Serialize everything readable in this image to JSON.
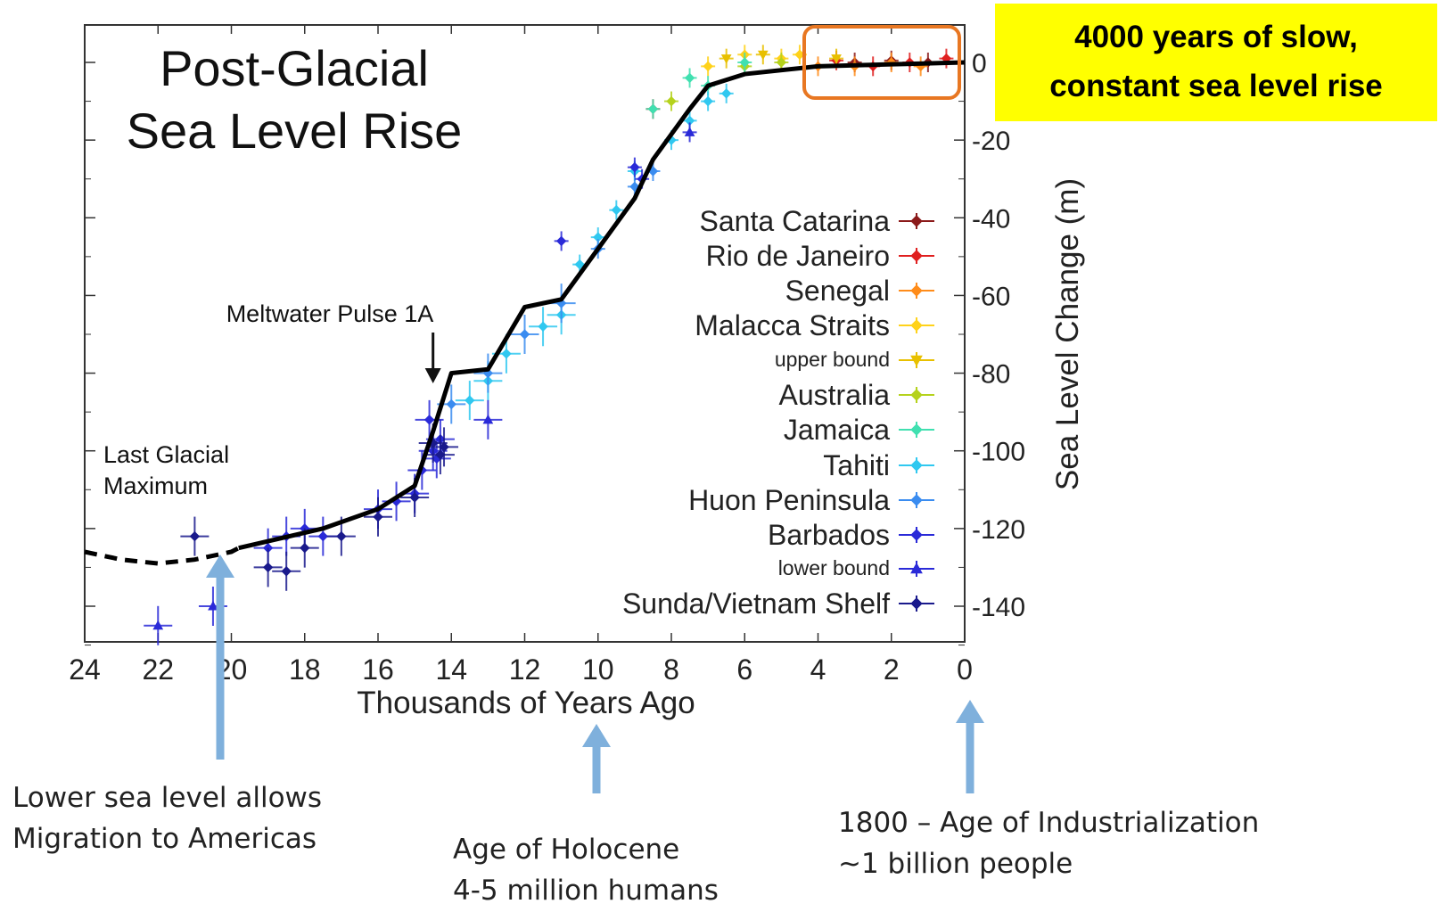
{
  "chart_data": {
    "type": "scatter",
    "title": "Post-Glacial Sea Level Rise",
    "title_lines": [
      "Post-Glacial",
      "Sea Level Rise"
    ],
    "xlabel": "Thousands of Years Ago",
    "ylabel": "Sea Level Change (m)",
    "xlim": [
      24,
      0
    ],
    "ylim": [
      -150,
      10
    ],
    "x_ticks": [
      24,
      22,
      20,
      18,
      16,
      14,
      12,
      10,
      8,
      6,
      4,
      2,
      0
    ],
    "y_ticks": [
      0,
      -20,
      -40,
      -60,
      -80,
      -100,
      -120,
      -140
    ],
    "y_axis_side": "right",
    "fit_curve": {
      "color": "#000000",
      "solid": [
        [
          19.8,
          -125
        ],
        [
          17.5,
          -120
        ],
        [
          16,
          -115
        ],
        [
          15,
          -109
        ],
        [
          14.5,
          -95
        ],
        [
          14,
          -80
        ],
        [
          13,
          -79
        ],
        [
          12,
          -63
        ],
        [
          11,
          -61
        ],
        [
          9,
          -35
        ],
        [
          8.5,
          -25
        ],
        [
          7.5,
          -12
        ],
        [
          7,
          -6
        ],
        [
          6,
          -3
        ],
        [
          4,
          -1
        ],
        [
          2,
          -0.5
        ],
        [
          0,
          0
        ]
      ],
      "dashed": [
        [
          24,
          -126
        ],
        [
          23,
          -128
        ],
        [
          22,
          -129
        ],
        [
          21,
          -128
        ],
        [
          20,
          -126
        ],
        [
          19.8,
          -125
        ]
      ]
    },
    "annotations": [
      {
        "text": "Meltwater Pulse 1A",
        "x": 14.5,
        "y": -88
      },
      {
        "text": "Last Glacial Maximum",
        "lines": [
          "Last Glacial",
          "Maximum"
        ],
        "x": 21,
        "y": -108
      }
    ],
    "legend_position": "right",
    "series": [
      {
        "name": "Santa Catarina",
        "color": "#8b1a1a",
        "marker": "diamond",
        "points": [
          [
            3,
            0
          ],
          [
            2,
            0.5
          ],
          [
            1,
            0
          ]
        ]
      },
      {
        "name": "Rio de Janeiro",
        "color": "#e02020",
        "marker": "diamond",
        "points": [
          [
            3.5,
            0.5
          ],
          [
            2.5,
            -1
          ],
          [
            1.5,
            0
          ],
          [
            0.5,
            1
          ],
          [
            8.5,
            -12
          ]
        ]
      },
      {
        "name": "Senegal",
        "color": "#ff8c1a",
        "marker": "diamond",
        "points": [
          [
            4,
            -1
          ],
          [
            3,
            -1
          ],
          [
            2,
            0
          ],
          [
            1.2,
            -1
          ]
        ]
      },
      {
        "name": "Malacca Straits",
        "color": "#ffd21a",
        "marker": "diamond",
        "points": [
          [
            6,
            2
          ],
          [
            5,
            1
          ],
          [
            4.5,
            2
          ],
          [
            7,
            -1
          ]
        ]
      },
      {
        "name": "upper bound",
        "color": "#e8c000",
        "marker": "triangle-down",
        "points": [
          [
            6.5,
            1
          ],
          [
            5.5,
            2
          ],
          [
            3.5,
            1
          ]
        ]
      },
      {
        "name": "Australia",
        "color": "#b5d21c",
        "marker": "diamond",
        "points": [
          [
            6,
            -1
          ],
          [
            5,
            0
          ],
          [
            8,
            -10
          ]
        ]
      },
      {
        "name": "Jamaica",
        "color": "#40e0b0",
        "marker": "diamond",
        "points": [
          [
            7.5,
            -4
          ],
          [
            7,
            -6
          ],
          [
            6,
            0
          ],
          [
            8.5,
            -12
          ]
        ]
      },
      {
        "name": "Tahiti",
        "color": "#30c8f0",
        "marker": "diamond",
        "points": [
          [
            13.5,
            -87
          ],
          [
            13,
            -82
          ],
          [
            12.5,
            -75
          ],
          [
            11.5,
            -68
          ],
          [
            11,
            -65
          ],
          [
            10.5,
            -52
          ],
          [
            10,
            -45
          ],
          [
            9.5,
            -38
          ],
          [
            9,
            -28
          ],
          [
            8,
            -20
          ],
          [
            7.5,
            -15
          ],
          [
            7,
            -10
          ],
          [
            6.5,
            -8
          ]
        ]
      },
      {
        "name": "Huon Peninsula",
        "color": "#3a8cf0",
        "marker": "diamond",
        "points": [
          [
            14,
            -88
          ],
          [
            13,
            -80
          ],
          [
            12,
            -70
          ],
          [
            11,
            -62
          ],
          [
            10,
            -48
          ],
          [
            9,
            -32
          ],
          [
            8.5,
            -28
          ]
        ]
      },
      {
        "name": "Barbados",
        "color": "#2a2ad8",
        "marker": "diamond",
        "points": [
          [
            19,
            -125
          ],
          [
            18.5,
            -122
          ],
          [
            18,
            -120
          ],
          [
            17.5,
            -122
          ],
          [
            16,
            -115
          ],
          [
            15.5,
            -113
          ],
          [
            15,
            -111
          ],
          [
            14.8,
            -105
          ],
          [
            14.5,
            -100
          ],
          [
            14.3,
            -97
          ],
          [
            14.6,
            -92
          ],
          [
            14.4,
            -102
          ],
          [
            11,
            -46
          ],
          [
            9,
            -27
          ],
          [
            8.8,
            -30
          ]
        ]
      },
      {
        "name": "lower bound",
        "color": "#2a2ad8",
        "marker": "triangle-up",
        "points": [
          [
            22,
            -145
          ],
          [
            20.5,
            -140
          ],
          [
            13,
            -92
          ],
          [
            7.5,
            -18
          ]
        ]
      },
      {
        "name": "Sunda/Vietnam Shelf",
        "color": "#1a1a8c",
        "marker": "diamond",
        "points": [
          [
            21,
            -122
          ],
          [
            19,
            -130
          ],
          [
            18.5,
            -131
          ],
          [
            18,
            -125
          ],
          [
            17,
            -122
          ],
          [
            16,
            -117
          ],
          [
            15,
            -112
          ],
          [
            14.5,
            -98
          ],
          [
            14.3,
            -101
          ],
          [
            14.2,
            -99
          ]
        ]
      }
    ]
  },
  "callouts": {
    "yellow_box_line1": "4000 years of slow,",
    "yellow_box_line2": "constant sea level rise",
    "lower_sea_line1": "Lower sea level allows",
    "lower_sea_line2": "Migration to Americas",
    "holocene_line1": "Age of Holocene",
    "holocene_line2": "4-5 million humans",
    "industrial_line1": "1800 – Age of Industrialization",
    "industrial_line2": "~1 billion people"
  },
  "colors": {
    "highlight_box": "#e87722",
    "callout_fill": "#ffff00",
    "pointer_arrow": "#7fb0dc"
  }
}
